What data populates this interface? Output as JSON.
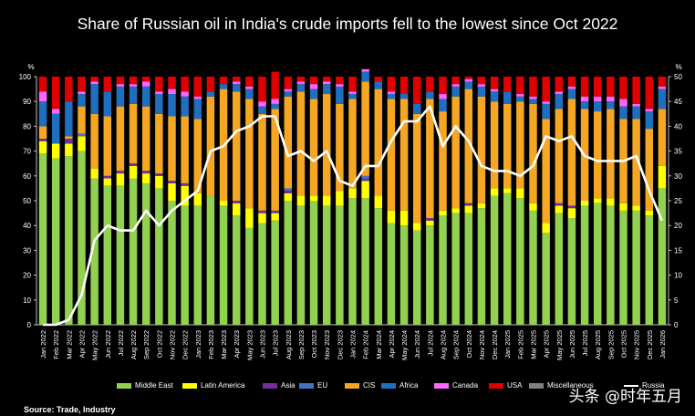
{
  "title": "Share of Russian oil in India's crude imports fell to the lowest since Oct 2022",
  "source": "Source: Trade, Industry",
  "watermark": "头条 @时年五月",
  "chart_data": {
    "type": "bar",
    "stacked": true,
    "y_unit_left": "%",
    "y_unit_right": "%",
    "ylim_left": [
      0,
      100
    ],
    "ylim_right": [
      0,
      50
    ],
    "yticks_left": [
      0,
      10,
      20,
      30,
      40,
      50,
      60,
      70,
      80,
      90,
      100
    ],
    "yticks_right": [
      0,
      5,
      10,
      15,
      20,
      25,
      30,
      35,
      40,
      45,
      50
    ],
    "categories": [
      "Jan 2022",
      "Feb 2022",
      "Mar 2022",
      "Apr 2022",
      "May 2022",
      "Jun 2022",
      "Jul 2022",
      "Aug 2022",
      "Sep 2022",
      "Oct 2022",
      "Nov 2022",
      "Dec 2022",
      "Jan 2023",
      "Feb 2023",
      "Mar 2023",
      "Apr 2023",
      "May 2023",
      "Jun 2023",
      "Jul 2023",
      "Aug 2023",
      "Sep 2023",
      "Oct 2023",
      "Nov 2023",
      "Dec 2023",
      "Jan 2024",
      "Feb 2024",
      "Mar 2024",
      "Apr 2024",
      "May 2024",
      "Jun 2024",
      "Jul 2024",
      "Aug 2024",
      "Sep 2024",
      "Oct 2024",
      "Nov 2024",
      "Dec 2024",
      "Jan 2025",
      "Feb 2025",
      "Mar 2025",
      "Apr 2025",
      "May 2025",
      "Jun 2025",
      "Jul 2025",
      "Aug 2025",
      "Sep 2025",
      "Oct 2025",
      "Nov 2025",
      "Dec 2025",
      "Jan 2026"
    ],
    "series": [
      {
        "name": "Middle East",
        "color": "#92d050",
        "values": [
          69,
          67,
          68,
          70,
          59,
          56,
          56,
          59,
          57,
          55,
          50,
          48,
          48,
          52,
          48,
          44,
          39,
          41,
          42,
          50,
          48,
          50,
          48,
          48,
          51,
          51,
          47,
          41,
          40,
          38,
          40,
          44,
          45,
          45,
          47,
          52,
          53,
          51,
          46,
          37,
          45,
          43,
          48,
          49,
          48,
          46,
          46,
          44,
          55
        ]
      },
      {
        "name": "Latin America",
        "color": "#ffff00",
        "values": [
          5,
          6,
          5,
          6,
          4,
          3,
          5,
          5,
          4,
          5,
          7,
          8,
          5,
          0,
          2,
          5,
          8,
          4,
          3,
          3,
          4,
          2,
          4,
          6,
          4,
          7,
          5,
          5,
          6,
          3,
          2,
          2,
          2,
          3,
          2,
          3,
          2,
          4,
          3,
          4,
          3,
          4,
          2,
          2,
          3,
          3,
          2,
          2,
          9
        ]
      },
      {
        "name": "Asia",
        "color": "#7030a0",
        "values": [
          1,
          0,
          2,
          0,
          0,
          1,
          1,
          1,
          1,
          1,
          1,
          1,
          0,
          0,
          0,
          1,
          0,
          1,
          1,
          1,
          0,
          0,
          0,
          0,
          0,
          1,
          0,
          0,
          0,
          0,
          1,
          0,
          0,
          1,
          0,
          0,
          0,
          0,
          0,
          0,
          1,
          1,
          0,
          0,
          0,
          0,
          0,
          0,
          0
        ]
      },
      {
        "name": "EU",
        "color": "#4472c4",
        "values": [
          0,
          0,
          0,
          1,
          0,
          0,
          0,
          0,
          0,
          0,
          0,
          0,
          0,
          0,
          0,
          0,
          0,
          0,
          0,
          1,
          0,
          0,
          0,
          0,
          0,
          1,
          0,
          0,
          0,
          0,
          0,
          0,
          0,
          0,
          0,
          0,
          0,
          0,
          0,
          0,
          0,
          0,
          0,
          0,
          0,
          0,
          0,
          0,
          0
        ]
      },
      {
        "name": "CIS",
        "color": "#f5a623",
        "values": [
          5,
          0,
          1,
          11,
          22,
          24,
          26,
          24,
          26,
          24,
          26,
          27,
          30,
          40,
          45,
          44,
          44,
          39,
          41,
          37,
          42,
          39,
          41,
          35,
          36,
          38,
          43,
          45,
          45,
          44,
          48,
          40,
          45,
          46,
          43,
          35,
          34,
          35,
          40,
          42,
          38,
          43,
          37,
          35,
          36,
          34,
          35,
          33,
          23
        ]
      },
      {
        "name": "Africa",
        "color": "#1f6fc0",
        "values": [
          10,
          12,
          14,
          5,
          12,
          10,
          8,
          7,
          8,
          8,
          9,
          8,
          8,
          2,
          2,
          3,
          4,
          3,
          2,
          2,
          3,
          4,
          4,
          7,
          2,
          4,
          3,
          2,
          2,
          4,
          3,
          5,
          4,
          3,
          4,
          4,
          5,
          2,
          2,
          6,
          6,
          4,
          3,
          4,
          3,
          5,
          5,
          7,
          8
        ]
      },
      {
        "name": "Canada",
        "color": "#ff66ff",
        "values": [
          4,
          2,
          0,
          1,
          1,
          0,
          1,
          1,
          2,
          1,
          2,
          2,
          1,
          0,
          0,
          1,
          1,
          2,
          2,
          1,
          1,
          2,
          1,
          1,
          1,
          1,
          0,
          1,
          0,
          0,
          0,
          2,
          1,
          1,
          1,
          1,
          0,
          1,
          1,
          1,
          1,
          1,
          2,
          2,
          2,
          3,
          1,
          1,
          1
        ]
      },
      {
        "name": "USA",
        "color": "#e00000",
        "values": [
          6,
          13,
          10,
          6,
          2,
          6,
          3,
          3,
          2,
          6,
          5,
          6,
          8,
          6,
          3,
          2,
          4,
          10,
          11,
          5,
          2,
          3,
          2,
          3,
          6,
          0,
          2,
          6,
          7,
          11,
          6,
          7,
          3,
          1,
          3,
          5,
          6,
          7,
          8,
          10,
          6,
          4,
          8,
          8,
          8,
          9,
          11,
          13,
          4
        ]
      }
    ],
    "line": {
      "name": "Russia",
      "axis": "right",
      "color": "#ffffff",
      "values": [
        0,
        0,
        1,
        6,
        17,
        20,
        19,
        19,
        23,
        20,
        23,
        25,
        27,
        35,
        36,
        39,
        40,
        42,
        42,
        34,
        35,
        33,
        35,
        29,
        28,
        32,
        32,
        37,
        41,
        41,
        44,
        36,
        40,
        37,
        32,
        31,
        31,
        30,
        32,
        38,
        37,
        38,
        34,
        33,
        33,
        33,
        34,
        27,
        21
      ]
    },
    "legend": [
      "Middle East",
      "Latin America",
      "Asia",
      "EU",
      "CIS",
      "Africa",
      "Canada",
      "USA",
      "Miscellaneous",
      "Russia"
    ],
    "legend_colors": [
      "#92d050",
      "#ffff00",
      "#7030a0",
      "#4472c4",
      "#f5a623",
      "#1f6fc0",
      "#ff66ff",
      "#e00000",
      "#808080",
      "#ffffff"
    ]
  }
}
